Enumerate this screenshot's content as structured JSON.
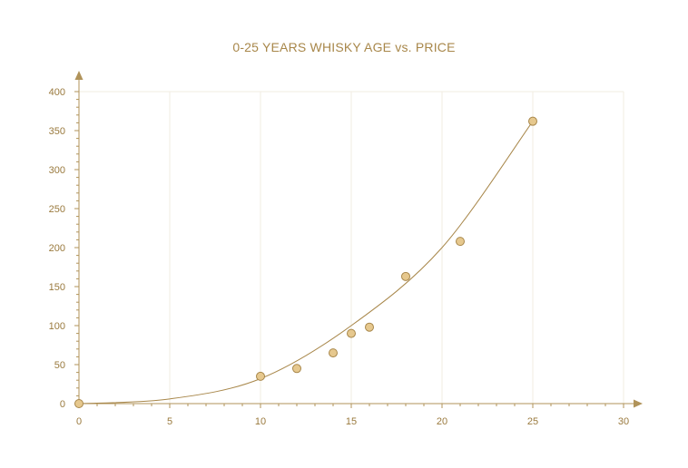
{
  "chart_data": {
    "type": "scatter",
    "title": "0-25 YEARS WHISKY AGE vs. PRICE",
    "xlabel": "",
    "ylabel": "",
    "xlim": [
      0,
      30
    ],
    "ylim": [
      0,
      400
    ],
    "x_ticks": [
      0,
      5,
      10,
      15,
      20,
      25,
      30
    ],
    "y_ticks": [
      0,
      50,
      100,
      150,
      200,
      250,
      300,
      350,
      400
    ],
    "grid": "vertical-faint",
    "colors": {
      "axis": "#b0935a",
      "text": "#a8874a",
      "tick_label": "#9a7a3e",
      "marker_fill": "#e6c88e",
      "marker_stroke": "#a8874a",
      "trend": "#a8874a",
      "grid": "#f1ece2"
    },
    "series": [
      {
        "points": [
          {
            "x": 0,
            "y": 0
          },
          {
            "x": 10,
            "y": 35
          },
          {
            "x": 12,
            "y": 45
          },
          {
            "x": 14,
            "y": 65
          },
          {
            "x": 15,
            "y": 90
          },
          {
            "x": 16,
            "y": 98
          },
          {
            "x": 18,
            "y": 163
          },
          {
            "x": 21,
            "y": 208
          },
          {
            "x": 25,
            "y": 362
          }
        ]
      }
    ],
    "trendline": {
      "type": "polynomial",
      "x_range": [
        0,
        25
      ],
      "points": [
        {
          "x": 0,
          "y": 0
        },
        {
          "x": 5,
          "y": 6
        },
        {
          "x": 10,
          "y": 32
        },
        {
          "x": 15,
          "y": 100
        },
        {
          "x": 20,
          "y": 200
        },
        {
          "x": 25,
          "y": 362
        }
      ]
    }
  }
}
